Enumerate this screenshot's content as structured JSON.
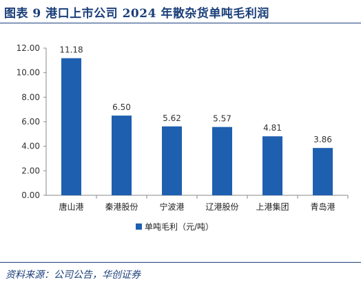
{
  "header": {
    "title": "图表 9   港口上市公司 2024 年散杂货单吨毛利润"
  },
  "footer": {
    "source": "资料来源：公司公告，华创证券"
  },
  "colors": {
    "bar": "#1f5fb0",
    "title": "#1a3e7a",
    "axis": "#888888"
  },
  "chart_data": {
    "type": "bar",
    "categories": [
      "唐山港",
      "秦港股份",
      "宁波港",
      "辽港股份",
      "上港集团",
      "青岛港"
    ],
    "series": [
      {
        "name": "单吨毛利（元/吨）",
        "values": [
          11.18,
          6.5,
          5.62,
          5.57,
          4.81,
          3.86
        ]
      }
    ],
    "data_labels": [
      "11.18",
      "6.50",
      "5.62",
      "5.57",
      "4.81",
      "3.86"
    ],
    "y_ticks": [
      "0.00",
      "2.00",
      "4.00",
      "6.00",
      "8.00",
      "10.00",
      "12.00"
    ],
    "ylim": [
      0,
      12
    ],
    "grid": false,
    "legend_position": "bottom"
  }
}
